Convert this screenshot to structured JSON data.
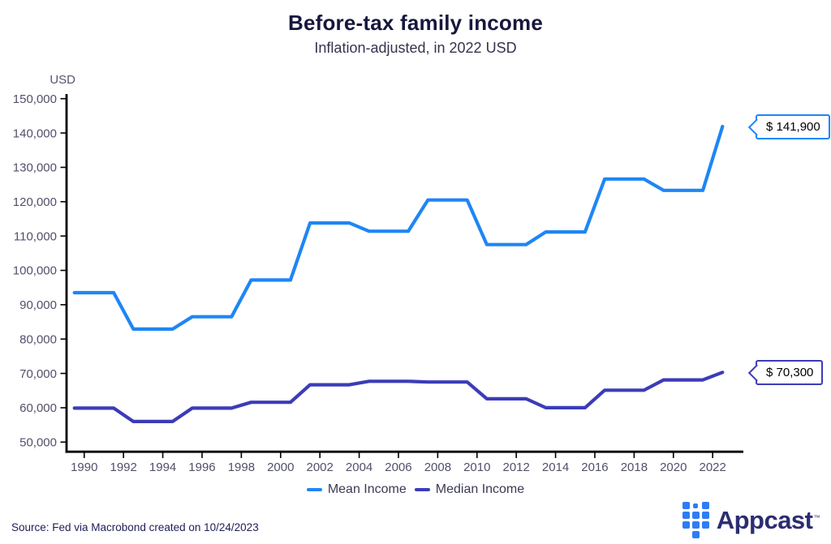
{
  "header": {
    "title": "Before-tax family income",
    "subtitle": "Inflation-adjusted, in 2022 USD"
  },
  "chart_data": {
    "type": "line",
    "title": "Before-tax family income",
    "subtitle": "Inflation-adjusted, in 2022 USD",
    "ylabel": "USD",
    "ylim": [
      50000,
      150000
    ],
    "y_ticks": [
      50000,
      60000,
      70000,
      80000,
      90000,
      100000,
      110000,
      120000,
      130000,
      140000,
      150000
    ],
    "x_tick_years": [
      1990,
      1992,
      1994,
      1996,
      1998,
      2000,
      2002,
      2004,
      2006,
      2008,
      2010,
      2012,
      2014,
      2016,
      2018,
      2020,
      2022
    ],
    "x_range_years": [
      1989.1,
      2023.5
    ],
    "grid": false,
    "legend_position": "bottom",
    "step_note": "Triennial Fed SCF survey values held flat for 3 years, 1-year ramps between surveys",
    "survey_years": [
      1989,
      1992,
      1995,
      1998,
      2001,
      2004,
      2007,
      2010,
      2013,
      2016,
      2019,
      2022
    ],
    "series": [
      {
        "name": "Mean Income",
        "color": "#1e86f5",
        "values": [
          93500,
          82900,
          86500,
          97200,
          113800,
          111400,
          120500,
          107500,
          111200,
          126600,
          123300,
          141900
        ],
        "end_label": "$ 141,900"
      },
      {
        "name": "Median Income",
        "color": "#3c3cb8",
        "values": [
          59900,
          56000,
          59900,
          61600,
          66700,
          67700,
          67500,
          62600,
          60000,
          65100,
          68100,
          70300
        ],
        "end_label": "$ 70,300"
      }
    ]
  },
  "legend": {
    "mean": "Mean Income",
    "median": "Median Income"
  },
  "callouts": {
    "mean": "$ 141,900",
    "median": "$ 70,300"
  },
  "footer": {
    "source": "Source: Fed via Macrobond created on 10/24/2023",
    "brand": "Appcast",
    "brand_tm": "™"
  },
  "colors": {
    "mean_line": "#1e86f5",
    "median_line": "#3c3cb8",
    "axis": "#000000",
    "tick_label": "#50506b",
    "title": "#17173d",
    "brand_blue": "#2e7cf6",
    "brand_text": "#2c2c72"
  }
}
